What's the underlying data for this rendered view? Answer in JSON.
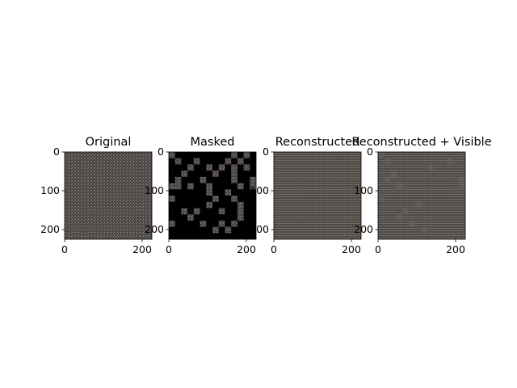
{
  "panels": [
    {
      "title": "Original",
      "mask": "none",
      "tone": "original"
    },
    {
      "title": "Masked",
      "mask": "visible-patches",
      "tone": "original"
    },
    {
      "title": "Reconstructed",
      "mask": "none",
      "tone": "reconstructed"
    },
    {
      "title": "Reconstructed + Visible",
      "mask": "none",
      "tone": "reconstructed"
    }
  ],
  "axes": {
    "x_ticks": [
      "0",
      "200"
    ],
    "y_ticks": [
      "0",
      "100",
      "200"
    ]
  },
  "colors": {
    "background": "#ffffff",
    "axis": "#000000",
    "mask": "#000000",
    "texture_base": "#4a4542",
    "texture_light": "#8f8a86",
    "reconstructed_base": "#4d4744",
    "reconstructed_light": "#6f6964"
  }
}
